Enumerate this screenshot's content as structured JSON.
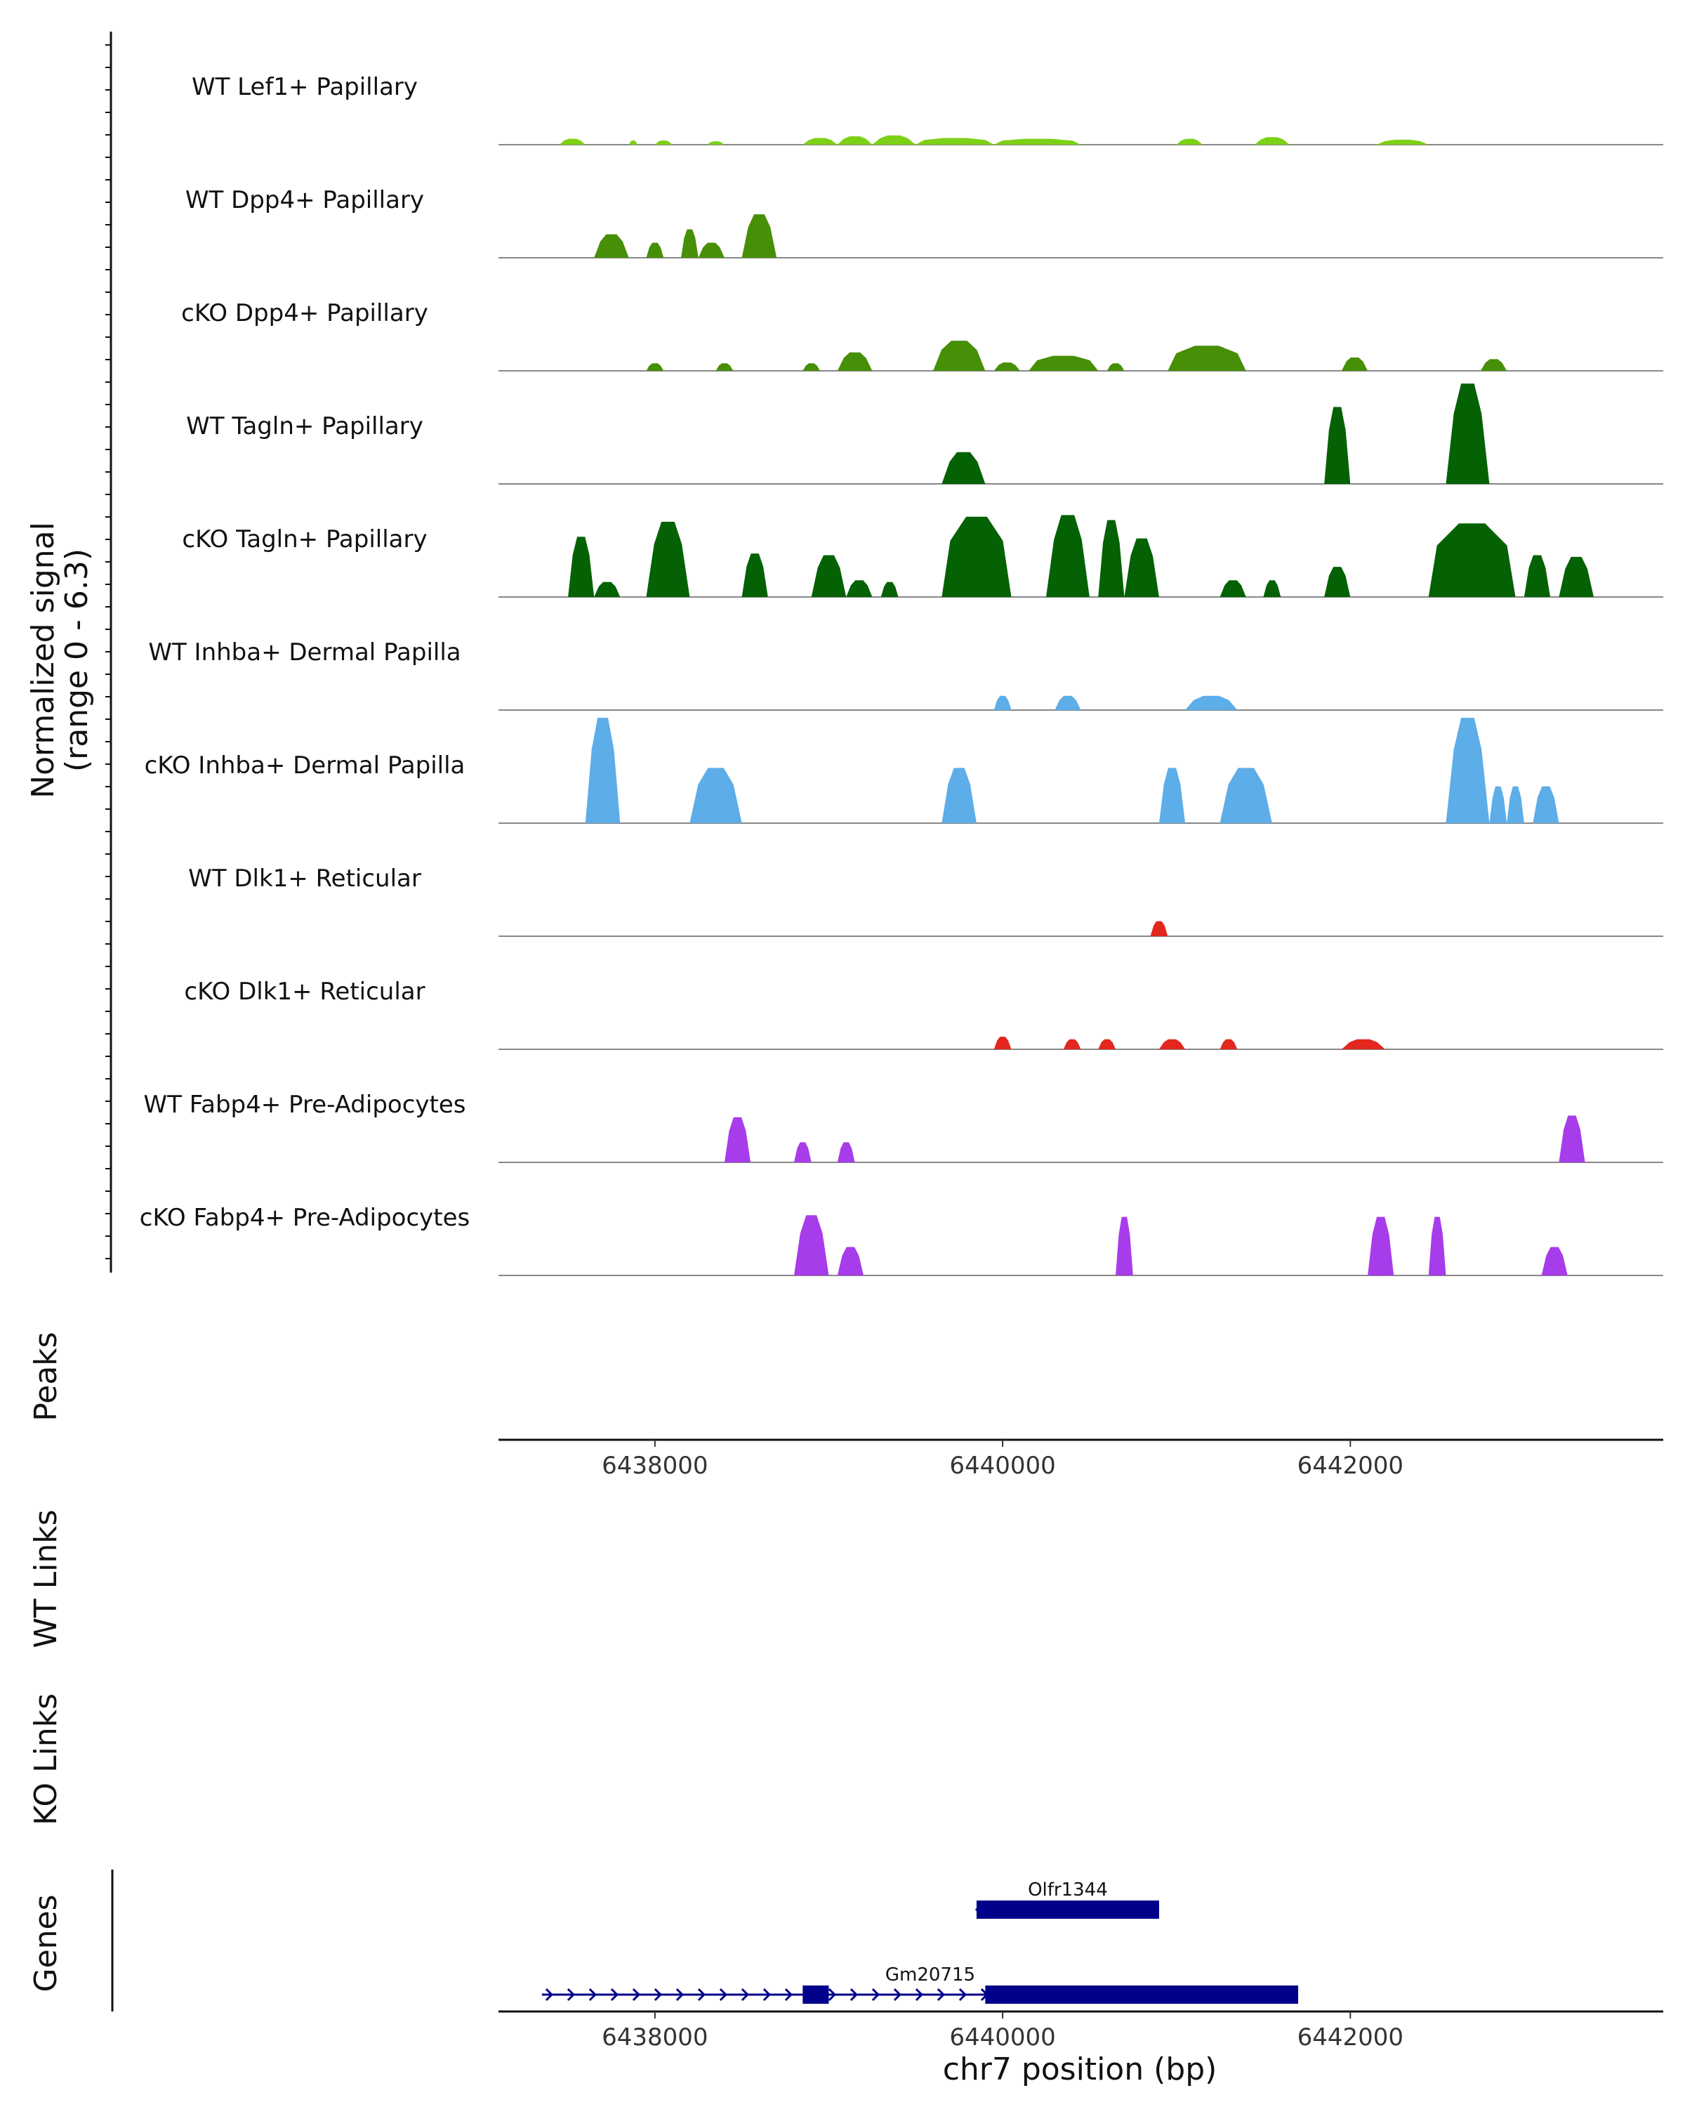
{
  "chart_data": {
    "type": "area",
    "title": "",
    "xlabel": "chr7 position (bp)",
    "ylabel": "Normalized signal\n(range 0 - 6.3)",
    "x_range": [
      6437100,
      6443800
    ],
    "x_ticks": [
      "6438000",
      "6440000",
      "6442000"
    ],
    "x_tick_values": [
      6438000,
      6440000,
      6442000
    ],
    "y_range": [
      0,
      6.3
    ],
    "panel_labels": {
      "peaks": "Peaks",
      "wt_links": "WT Links",
      "ko_links": "KO Links",
      "genes": "Genes"
    },
    "tracks": [
      {
        "name": "WT Lef1+ Papillary",
        "color": "#7cd116",
        "peaks": [
          [
            6437450,
            6437600,
            0.35
          ],
          [
            6437850,
            6437900,
            0.25
          ],
          [
            6438000,
            6438100,
            0.25
          ],
          [
            6438300,
            6438400,
            0.2
          ],
          [
            6438850,
            6439050,
            0.4
          ],
          [
            6439050,
            6439250,
            0.5
          ],
          [
            6439250,
            6439500,
            0.55
          ],
          [
            6439500,
            6439950,
            0.4
          ],
          [
            6439950,
            6440450,
            0.35
          ],
          [
            6441000,
            6441150,
            0.35
          ],
          [
            6441450,
            6441650,
            0.45
          ],
          [
            6442150,
            6442450,
            0.3
          ]
        ]
      },
      {
        "name": "WT Dpp4+ Papillary",
        "color": "#478f07",
        "peaks": [
          [
            6437650,
            6437850,
            1.4
          ],
          [
            6437950,
            6438050,
            0.9
          ],
          [
            6438150,
            6438250,
            1.7
          ],
          [
            6438250,
            6438400,
            0.9
          ],
          [
            6438500,
            6438700,
            2.6
          ]
        ]
      },
      {
        "name": "cKO Dpp4+ Papillary",
        "color": "#478f07",
        "peaks": [
          [
            6437950,
            6438050,
            0.45
          ],
          [
            6438350,
            6438450,
            0.45
          ],
          [
            6438850,
            6438950,
            0.45
          ],
          [
            6439050,
            6439250,
            1.1
          ],
          [
            6439600,
            6439900,
            1.8
          ],
          [
            6439950,
            6440100,
            0.5
          ],
          [
            6440150,
            6440550,
            0.9
          ],
          [
            6440600,
            6440700,
            0.45
          ],
          [
            6440950,
            6441400,
            1.5
          ],
          [
            6441950,
            6442100,
            0.8
          ],
          [
            6442750,
            6442900,
            0.7
          ]
        ]
      },
      {
        "name": "WT Tagln+ Papillary",
        "color": "#046204",
        "peaks": [
          [
            6439650,
            6439900,
            1.9
          ],
          [
            6441850,
            6442000,
            4.6
          ],
          [
            6442550,
            6442800,
            6.0
          ]
        ]
      },
      {
        "name": "cKO Tagln+ Papillary",
        "color": "#046204",
        "peaks": [
          [
            6437500,
            6437650,
            3.6
          ],
          [
            6437650,
            6437800,
            0.9
          ],
          [
            6437950,
            6438200,
            4.5
          ],
          [
            6438500,
            6438650,
            2.6
          ],
          [
            6438900,
            6439100,
            2.5
          ],
          [
            6439100,
            6439250,
            1.0
          ],
          [
            6439300,
            6439400,
            0.9
          ],
          [
            6439650,
            6440050,
            4.8
          ],
          [
            6440250,
            6440500,
            4.9
          ],
          [
            6440550,
            6440700,
            4.6
          ],
          [
            6440700,
            6440900,
            3.5
          ],
          [
            6441250,
            6441400,
            1.0
          ],
          [
            6441500,
            6441600,
            1.0
          ],
          [
            6441850,
            6442000,
            1.8
          ],
          [
            6442450,
            6442950,
            4.4
          ],
          [
            6443000,
            6443150,
            2.5
          ],
          [
            6443200,
            6443400,
            2.4
          ]
        ]
      },
      {
        "name": "WT Inhba+ Dermal Papilla",
        "color": "#5dade9",
        "peaks": [
          [
            6439950,
            6440050,
            0.85
          ],
          [
            6440300,
            6440450,
            0.85
          ],
          [
            6441050,
            6441350,
            0.85
          ]
        ]
      },
      {
        "name": "cKO Inhba+ Dermal Papilla",
        "color": "#5dade9",
        "peaks": [
          [
            6437600,
            6437800,
            6.3
          ],
          [
            6438200,
            6438500,
            3.3
          ],
          [
            6439650,
            6439850,
            3.3
          ],
          [
            6440900,
            6441050,
            3.3
          ],
          [
            6441250,
            6441550,
            3.3
          ],
          [
            6442550,
            6442800,
            6.3
          ],
          [
            6442800,
            6442900,
            2.2
          ],
          [
            6442900,
            6443000,
            2.2
          ],
          [
            6443050,
            6443200,
            2.2
          ]
        ]
      },
      {
        "name": "WT Dlk1+ Reticular",
        "color": "#e3261e",
        "peaks": [
          [
            6440850,
            6440950,
            0.9
          ]
        ]
      },
      {
        "name": "cKO Dlk1+ Reticular",
        "color": "#e3261e",
        "peaks": [
          [
            6439950,
            6440050,
            0.75
          ],
          [
            6440350,
            6440450,
            0.6
          ],
          [
            6440550,
            6440650,
            0.6
          ],
          [
            6440900,
            6441050,
            0.6
          ],
          [
            6441250,
            6441350,
            0.6
          ],
          [
            6441950,
            6442200,
            0.6
          ]
        ]
      },
      {
        "name": "WT Fabp4+ Pre-Adipocytes",
        "color": "#a73ceb",
        "peaks": [
          [
            6438400,
            6438550,
            2.7
          ],
          [
            6438800,
            6438900,
            1.2
          ],
          [
            6439050,
            6439150,
            1.2
          ],
          [
            6443200,
            6443350,
            2.8
          ]
        ]
      },
      {
        "name": "cKO Fabp4+ Pre-Adipocytes",
        "color": "#a73ceb",
        "peaks": [
          [
            6438800,
            6439000,
            3.6
          ],
          [
            6439050,
            6439200,
            1.7
          ],
          [
            6440650,
            6440750,
            3.5
          ],
          [
            6442100,
            6442250,
            3.5
          ],
          [
            6442450,
            6442550,
            3.5
          ],
          [
            6443100,
            6443250,
            1.7
          ]
        ]
      }
    ],
    "genes": [
      {
        "name": "Olfr1344",
        "start": 6439850,
        "end": 6440900,
        "strand": "-",
        "exons": [
          [
            6439850,
            6440900
          ]
        ]
      },
      {
        "name": "Gm20715",
        "start": 6437350,
        "end": 6441700,
        "strand": "+",
        "exons": [
          [
            6438850,
            6439000
          ],
          [
            6439900,
            6441700
          ]
        ]
      }
    ]
  }
}
